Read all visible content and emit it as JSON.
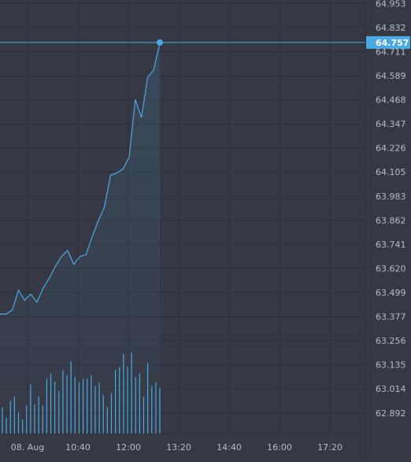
{
  "chart_data": {
    "type": "line",
    "title": "",
    "xlabel": "",
    "ylabel": "",
    "x_ticks": [
      "08. Aug",
      "10:40",
      "12:00",
      "13:20",
      "14:40",
      "16:00",
      "17:20"
    ],
    "y_ticks": [
      "64.953",
      "64.832",
      "64.711",
      "64.589",
      "64.468",
      "64.347",
      "64.226",
      "64.105",
      "63.983",
      "63.862",
      "63.741",
      "63.620",
      "63.499",
      "63.377",
      "63.256",
      "63.135",
      "63.014",
      "62.892"
    ],
    "ylim": [
      62.85,
      64.953
    ],
    "grid": true,
    "last_price": {
      "label": "64.757",
      "value": 64.757
    },
    "series": [
      {
        "values": [
          63.39,
          63.39,
          63.41,
          63.51,
          63.46,
          63.49,
          63.45,
          63.52,
          63.57,
          63.63,
          63.68,
          63.71,
          63.64,
          63.68,
          63.69,
          63.78,
          63.86,
          63.93,
          64.09,
          64.1,
          64.12,
          64.18,
          64.47,
          64.38,
          64.58,
          64.62,
          64.757
        ]
      },
      {
        "values": [
          0.3,
          0.18,
          0.37,
          0.42,
          0.24,
          0.16,
          0.32,
          0.56,
          0.33,
          0.42,
          0.32,
          0.62,
          0.68,
          0.59,
          0.48,
          0.72,
          0.66,
          0.82,
          0.64,
          0.58,
          0.62,
          0.62,
          0.66,
          0.54,
          0.58,
          0.44,
          0.3,
          0.46,
          0.72,
          0.75,
          0.9,
          0.76,
          0.92,
          0.64,
          0.68,
          0.42,
          0.8,
          0.54,
          0.58,
          0.52
        ]
      }
    ],
    "colors": {
      "background": "#363843",
      "grid": "#2c2e38",
      "line": "#4aa8e3",
      "volume": "#4aa8e3",
      "label_bg": "#4aa8e3",
      "label_text": "#ffffff",
      "tick_text": "#b8bcc8"
    }
  }
}
